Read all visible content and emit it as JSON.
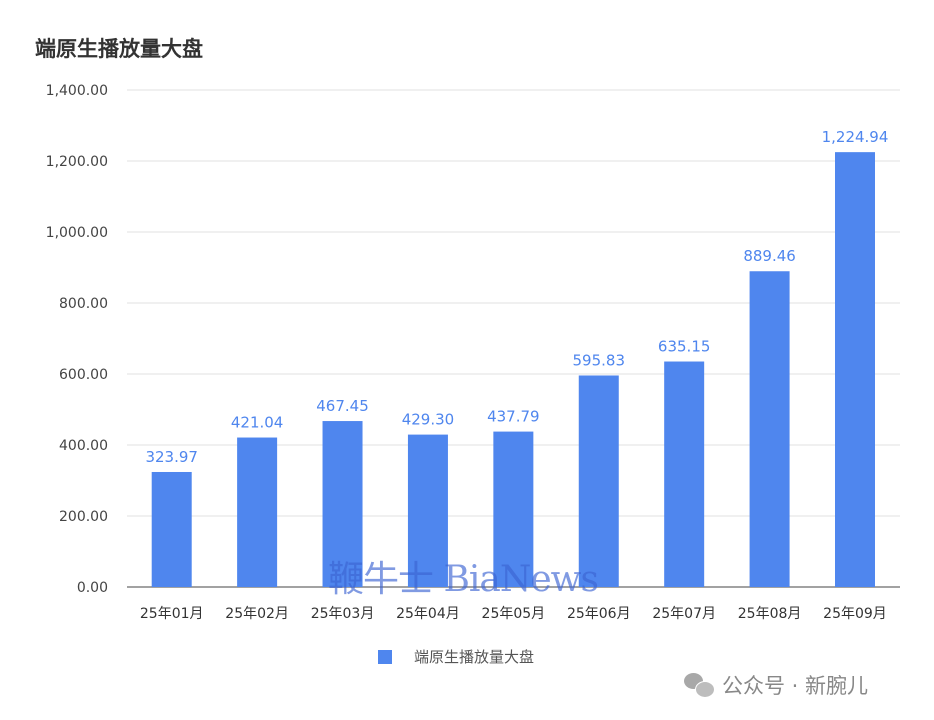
{
  "chart_data": {
    "type": "bar",
    "title": "端原生播放量大盘",
    "categories": [
      "25年01月",
      "25年02月",
      "25年03月",
      "25年04月",
      "25年05月",
      "25年06月",
      "25年07月",
      "25年08月",
      "25年09月"
    ],
    "series": [
      {
        "name": "端原生播放量大盘",
        "values": [
          323.97,
          421.04,
          467.45,
          429.3,
          437.79,
          595.83,
          635.15,
          889.46,
          1224.94
        ],
        "labels": [
          "323.97",
          "421.04",
          "467.45",
          "429.30",
          "437.79",
          "595.83",
          "635.15",
          "889.46",
          "1,224.94"
        ],
        "color": "#4f86ee"
      }
    ],
    "yticks": [
      0,
      200,
      400,
      600,
      800,
      1000,
      1200,
      1400
    ],
    "ytick_labels": [
      "0.00",
      "200.00",
      "400.00",
      "600.00",
      "800.00",
      "1,000.00",
      "1,200.00",
      "1,400.00"
    ],
    "ylim": [
      0,
      1400
    ],
    "xlabel": "",
    "ylabel": "",
    "grid": true,
    "legend": "bottom-center"
  },
  "watermark": "鞭牛士 BiaNews",
  "footer": {
    "text": "公众号 · 新腕儿"
  }
}
